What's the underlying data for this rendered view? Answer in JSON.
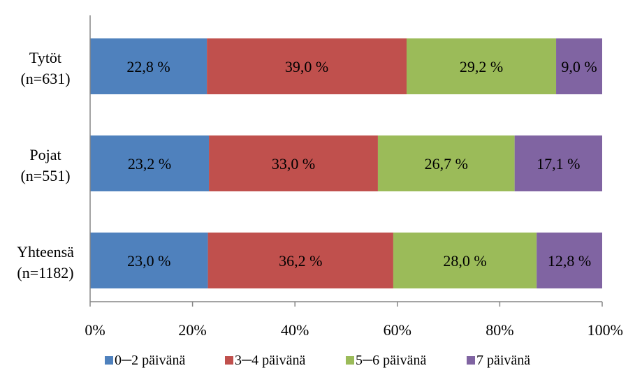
{
  "chart_data": {
    "type": "bar",
    "orientation": "horizontal",
    "stacked": true,
    "categories": [
      [
        "Tytöt",
        "(n=631)"
      ],
      [
        "Pojat",
        "(n=551)"
      ],
      [
        "Yhteensä",
        "(n=1182)"
      ]
    ],
    "series": [
      {
        "name": "0─2 päivänä",
        "color": "#4F81BD",
        "values": [
          22.8,
          23.2,
          23.0
        ],
        "labels": [
          "22,8 %",
          "23,2 %",
          "23,0 %"
        ]
      },
      {
        "name": "3─4 päivänä",
        "color": "#C0504D",
        "values": [
          39.0,
          33.0,
          36.2
        ],
        "labels": [
          "39,0 %",
          "33,0 %",
          "36,2 %"
        ]
      },
      {
        "name": "5─6 päivänä",
        "color": "#9BBB59",
        "values": [
          29.2,
          26.7,
          28.0
        ],
        "labels": [
          "29,2 %",
          "26,7 %",
          "28,0 %"
        ]
      },
      {
        "name": "7 päivänä",
        "color": "#8064A2",
        "values": [
          9.0,
          17.1,
          12.8
        ],
        "labels": [
          "9,0 %",
          "17,1 %",
          "12,8 %"
        ]
      }
    ],
    "xlim": [
      0,
      100
    ],
    "xticks": [
      "0%",
      "20%",
      "40%",
      "60%",
      "80%",
      "100%"
    ],
    "grid": false,
    "legend_position": "bottom"
  }
}
